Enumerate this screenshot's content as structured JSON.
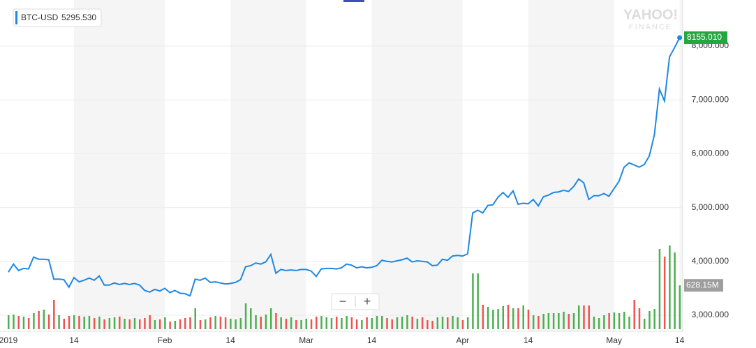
{
  "chart_data": {
    "type": "line",
    "watermark": "YAHOO!",
    "watermark_sub": "FINANCE",
    "legend_name": "BTC-USD",
    "legend_value": "5295.530",
    "zoom_out": "−",
    "zoom_in": "+",
    "categories": [
      "2019",
      null,
      null,
      null,
      null,
      null,
      null,
      null,
      null,
      null,
      null,
      null,
      null,
      "14",
      null,
      null,
      null,
      null,
      null,
      null,
      null,
      null,
      null,
      null,
      null,
      null,
      null,
      null,
      null,
      null,
      null,
      "Feb",
      null,
      null,
      null,
      null,
      null,
      null,
      null,
      null,
      null,
      null,
      null,
      null,
      "14",
      null,
      null,
      null,
      null,
      null,
      null,
      null,
      null,
      null,
      null,
      null,
      null,
      null,
      null,
      "Mar",
      null,
      null,
      null,
      null,
      null,
      null,
      null,
      null,
      null,
      null,
      null,
      null,
      "14",
      null,
      null,
      null,
      null,
      null,
      null,
      null,
      null,
      null,
      null,
      null,
      null,
      null,
      null,
      null,
      null,
      null,
      "Apr",
      null,
      null,
      null,
      null,
      null,
      null,
      null,
      null,
      null,
      null,
      null,
      null,
      "14",
      null,
      null,
      null,
      null,
      null,
      null,
      null,
      null,
      null,
      null,
      null,
      null,
      null,
      null,
      null,
      null,
      "May",
      null,
      null,
      null,
      null,
      null,
      null,
      null,
      null,
      null,
      null,
      null,
      null,
      "14"
    ],
    "series": [
      {
        "name": "BTC-USD",
        "color": "#1e88e5",
        "values": [
          3800,
          3950,
          3830,
          3870,
          3860,
          4080,
          4040,
          4040,
          4030,
          3670,
          3670,
          3660,
          3520,
          3700,
          3620,
          3650,
          3690,
          3650,
          3730,
          3560,
          3560,
          3600,
          3570,
          3590,
          3570,
          3590,
          3560,
          3460,
          3430,
          3480,
          3450,
          3500,
          3420,
          3460,
          3410,
          3400,
          3360,
          3670,
          3650,
          3690,
          3610,
          3620,
          3600,
          3580,
          3590,
          3610,
          3660,
          3900,
          3920,
          3970,
          3950,
          3990,
          4130,
          3780,
          3850,
          3830,
          3840,
          3830,
          3850,
          3850,
          3820,
          3720,
          3860,
          3870,
          3870,
          3860,
          3880,
          3950,
          3930,
          3880,
          3900,
          3880,
          3890,
          3920,
          4020,
          4000,
          3990,
          4010,
          4030,
          4060,
          3990,
          4010,
          4000,
          3990,
          3920,
          3930,
          4040,
          4020,
          4100,
          4110,
          4100,
          4140,
          4900,
          4950,
          4900,
          5040,
          5050,
          5190,
          5280,
          5190,
          5310,
          5060,
          5080,
          5070,
          5150,
          5030,
          5200,
          5230,
          5280,
          5290,
          5320,
          5300,
          5390,
          5530,
          5460,
          5150,
          5220,
          5220,
          5260,
          5210,
          5350,
          5490,
          5750,
          5830,
          5790,
          5750,
          5800,
          5960,
          6350,
          7200,
          6980,
          7800,
          7970,
          8155.01
        ],
        "last_label": "8155.010"
      }
    ],
    "volume": {
      "up_color": "#4caf50",
      "down_color": "#ef5350",
      "values": [
        200,
        210,
        190,
        180,
        160,
        230,
        260,
        280,
        210,
        420,
        200,
        150,
        190,
        200,
        190,
        180,
        190,
        160,
        180,
        140,
        160,
        170,
        180,
        150,
        140,
        160,
        140,
        160,
        200,
        130,
        140,
        170,
        110,
        120,
        140,
        160,
        170,
        300,
        130,
        140,
        170,
        190,
        180,
        170,
        150,
        140,
        160,
        370,
        300,
        200,
        180,
        210,
        300,
        230,
        170,
        150,
        170,
        130,
        130,
        150,
        140,
        180,
        190,
        170,
        160,
        180,
        160,
        190,
        170,
        140,
        130,
        170,
        160,
        190,
        190,
        160,
        140,
        170,
        180,
        200,
        180,
        150,
        170,
        130,
        120,
        170,
        180,
        170,
        190,
        170,
        130,
        170,
        800,
        800,
        350,
        320,
        280,
        290,
        330,
        350,
        300,
        300,
        340,
        280,
        200,
        190,
        220,
        230,
        230,
        230,
        250,
        220,
        230,
        340,
        340,
        340,
        180,
        160,
        200,
        230,
        240,
        230,
        250,
        180,
        420,
        300,
        150,
        260,
        290,
        1150,
        1040,
        1200,
        1100,
        628.15
      ],
      "last_label": "628.15M"
    },
    "ylim": [
      2800,
      8700
    ],
    "yticks": [
      {
        "value": 3000,
        "label": "3,000.000"
      },
      {
        "value": 4000,
        "label": "4,000.000"
      },
      {
        "value": 5000,
        "label": "5,000.000"
      },
      {
        "value": 6000,
        "label": "6,000.000"
      },
      {
        "value": 7000,
        "label": "7,000.000"
      },
      {
        "value": 8000,
        "label": "8,000.000"
      }
    ],
    "grid": true
  }
}
